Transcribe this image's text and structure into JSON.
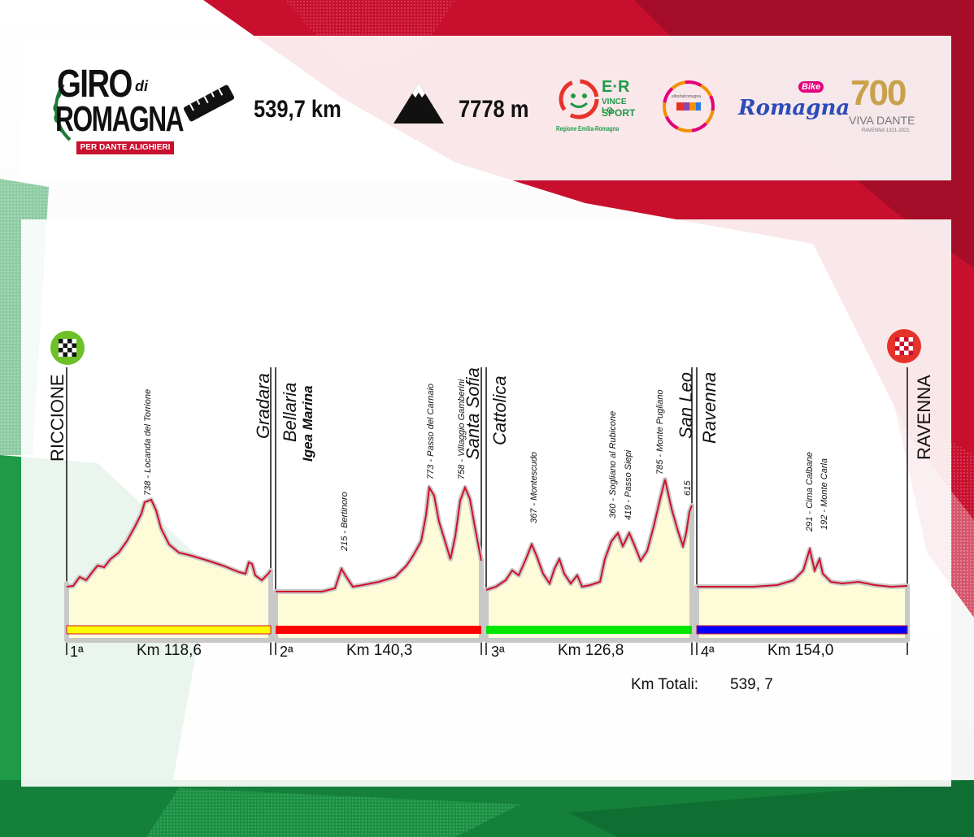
{
  "header": {
    "logo": {
      "line1": "GIRO",
      "line1_small": "di",
      "line2": "ROMAGNA",
      "tagline": "PER DANTE ALIGHIERI"
    },
    "distance": {
      "icon": "ruler-icon",
      "value": "539,7 km"
    },
    "elevation": {
      "icon": "mountain-icon",
      "value": "7778 m"
    },
    "sponsors": [
      {
        "name": "er-vince-lo-sport-logo",
        "text_main": "E·R",
        "text_sub1": "VINCE LO",
        "text_sub2": "SPORT",
        "text_foot": "Regione Emilia-Romagna"
      },
      {
        "name": "emilia-romagna-logo",
        "text": "elbortalromagna"
      },
      {
        "name": "romagna-bike-logo",
        "text": "Romagna",
        "badge": "Bike"
      },
      {
        "name": "viva-dante-logo",
        "text_big": "700",
        "text_main": "VIVA DANTE",
        "text_sub": "RAVENNA 1321-2021"
      }
    ]
  },
  "profile": {
    "start_label": "RICCIONE",
    "finish_label": "RAVENNA",
    "start_icon": "checkered-flag-icon",
    "finish_icon": "checkered-flag-icon",
    "stage_places": [
      {
        "name": "gradara",
        "line1": "Gradara"
      },
      {
        "name": "bellaria",
        "line1": "Bellaria",
        "line2": "Igea Marina"
      },
      {
        "name": "santa-sofia",
        "line1": "Santa Sofia"
      },
      {
        "name": "cattolica",
        "line1": "Cattolica"
      },
      {
        "name": "san-leo",
        "line1": "San Leo"
      },
      {
        "name": "ravenna-start",
        "line1": "Ravenna"
      }
    ],
    "climbs": [
      "738 - Locanda del Torrione",
      "215 - Bertinoro",
      "773 - Passo del  Carnaio",
      "758 - Villaggio Gamberini",
      "367 - Montescudo",
      "360 - Sogliano al Rubicone",
      "419 - Passo Siepi",
      "785 - Monte  Pugliano",
      "615",
      "291 - Cima Calbane",
      "192 - Monte  Carla"
    ],
    "stages": [
      {
        "number": "1ª",
        "distance": "Km 118,6",
        "color": "#ffff00"
      },
      {
        "number": "2ª",
        "distance": "Km 140,3",
        "color": "#ff0000"
      },
      {
        "number": "3ª",
        "distance": "Km 126,8",
        "color": "#00e600"
      },
      {
        "number": "4ª",
        "distance": "Km 154,0",
        "color": "#0000ff"
      }
    ],
    "total_label": "Km Totali:",
    "total_value": "539, 7"
  }
}
